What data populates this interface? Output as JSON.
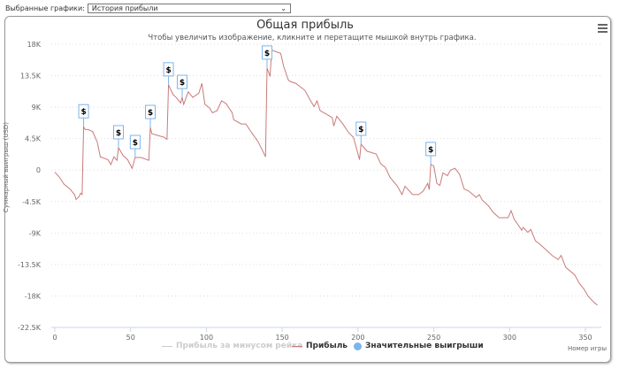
{
  "selector": {
    "label": "Выбранные графики:",
    "value": "История прибыли"
  },
  "chart_data": {
    "type": "line",
    "title": "Общая прибыль",
    "subtitle": "Чтобы увеличить изображение, кликните и перетащите мышкой внутрь графика.",
    "xlabel": "Номер игры",
    "ylabel": "Суммарный выигрыш (USD)",
    "xlim": [
      0,
      360
    ],
    "ylim": [
      -22500,
      18000
    ],
    "x_ticks": [
      "0",
      "50",
      "100",
      "150",
      "200",
      "250",
      "300",
      "350"
    ],
    "x_tick_values": [
      0,
      50,
      100,
      150,
      200,
      250,
      300,
      350
    ],
    "y_ticks": [
      "18K",
      "13.5K",
      "9K",
      "4.5K",
      "0",
      "-4.5K",
      "-9K",
      "-13.5K",
      "-18K",
      "-22.5K"
    ],
    "y_tick_values": [
      18000,
      13500,
      9000,
      4500,
      0,
      -4500,
      -9000,
      -13500,
      -18000,
      -22500
    ],
    "legend": [
      {
        "name": "Прибыль за минусом рейка",
        "color": "#cccccc",
        "hidden": true
      },
      {
        "name": "Прибыль",
        "color": "#c97a7a"
      },
      {
        "name": "Значительные выигрыши",
        "color": "#7cb5ec"
      }
    ],
    "series": [
      {
        "name": "Прибыль",
        "points": [
          [
            0,
            -300
          ],
          [
            3,
            -1000
          ],
          [
            6,
            -2000
          ],
          [
            10,
            -2700
          ],
          [
            13,
            -3500
          ],
          [
            14,
            -4200
          ],
          [
            16,
            -3800
          ],
          [
            17,
            -3300
          ],
          [
            18,
            -3500
          ],
          [
            19,
            6200
          ],
          [
            20,
            5800
          ],
          [
            22,
            5800
          ],
          [
            25,
            5500
          ],
          [
            28,
            4000
          ],
          [
            30,
            1900
          ],
          [
            35,
            1500
          ],
          [
            37,
            800
          ],
          [
            39,
            1900
          ],
          [
            41,
            1400
          ],
          [
            42,
            3200
          ],
          [
            45,
            2100
          ],
          [
            48,
            1500
          ],
          [
            51,
            250
          ],
          [
            53,
            1800
          ],
          [
            57,
            1800
          ],
          [
            62,
            1400
          ],
          [
            63,
            6100
          ],
          [
            64,
            5200
          ],
          [
            72,
            4700
          ],
          [
            74,
            4400
          ],
          [
            75,
            12200
          ],
          [
            78,
            10800
          ],
          [
            80,
            10400
          ],
          [
            83,
            9600
          ],
          [
            84,
            10400
          ],
          [
            85,
            9400
          ],
          [
            88,
            11200
          ],
          [
            91,
            10400
          ],
          [
            95,
            11000
          ],
          [
            97,
            12400
          ],
          [
            99,
            9400
          ],
          [
            102,
            8900
          ],
          [
            104,
            8200
          ],
          [
            107,
            8500
          ],
          [
            110,
            9900
          ],
          [
            113,
            9500
          ],
          [
            117,
            8200
          ],
          [
            118,
            7200
          ],
          [
            123,
            6600
          ],
          [
            126,
            6600
          ],
          [
            130,
            5300
          ],
          [
            134,
            4100
          ],
          [
            139,
            1900
          ],
          [
            140,
            14600
          ],
          [
            142,
            13400
          ],
          [
            143,
            17200
          ],
          [
            145,
            17000
          ],
          [
            149,
            16700
          ],
          [
            151,
            14800
          ],
          [
            154,
            12900
          ],
          [
            155,
            12700
          ],
          [
            159,
            12400
          ],
          [
            165,
            11400
          ],
          [
            169,
            9800
          ],
          [
            171,
            9100
          ],
          [
            173,
            9900
          ],
          [
            175,
            8500
          ],
          [
            180,
            7900
          ],
          [
            183,
            7500
          ],
          [
            184,
            6300
          ],
          [
            186,
            7700
          ],
          [
            190,
            6600
          ],
          [
            194,
            5300
          ],
          [
            197,
            4700
          ],
          [
            201,
            1500
          ],
          [
            202,
            3700
          ],
          [
            206,
            2700
          ],
          [
            212,
            2300
          ],
          [
            215,
            900
          ],
          [
            218,
            400
          ],
          [
            221,
            -1000
          ],
          [
            226,
            -2300
          ],
          [
            229,
            -3500
          ],
          [
            231,
            -2300
          ],
          [
            236,
            -3500
          ],
          [
            240,
            -3500
          ],
          [
            243,
            -3000
          ],
          [
            246,
            -1900
          ],
          [
            247,
            -2800
          ],
          [
            248,
            800
          ],
          [
            250,
            600
          ],
          [
            252,
            -1900
          ],
          [
            254,
            -2200
          ],
          [
            256,
            -400
          ],
          [
            259,
            -800
          ],
          [
            261,
            0
          ],
          [
            264,
            250
          ],
          [
            267,
            -600
          ],
          [
            270,
            -2700
          ],
          [
            273,
            -3000
          ],
          [
            278,
            -3900
          ],
          [
            280,
            -3500
          ],
          [
            282,
            -4300
          ],
          [
            286,
            -5100
          ],
          [
            289,
            -6000
          ],
          [
            293,
            -6800
          ],
          [
            299,
            -6800
          ],
          [
            301,
            -5800
          ],
          [
            303,
            -7000
          ],
          [
            308,
            -8600
          ],
          [
            309,
            -8200
          ],
          [
            312,
            -8900
          ],
          [
            314,
            -8500
          ],
          [
            317,
            -10100
          ],
          [
            320,
            -10600
          ],
          [
            324,
            -11400
          ],
          [
            328,
            -12200
          ],
          [
            332,
            -12800
          ],
          [
            334,
            -12200
          ],
          [
            337,
            -13900
          ],
          [
            343,
            -15000
          ],
          [
            346,
            -16200
          ],
          [
            349,
            -17000
          ],
          [
            352,
            -18100
          ],
          [
            356,
            -19000
          ],
          [
            358,
            -19300
          ]
        ]
      }
    ],
    "big_wins": [
      19,
      42,
      53,
      63,
      75,
      84,
      140,
      202,
      248
    ],
    "flag_label": "$"
  }
}
